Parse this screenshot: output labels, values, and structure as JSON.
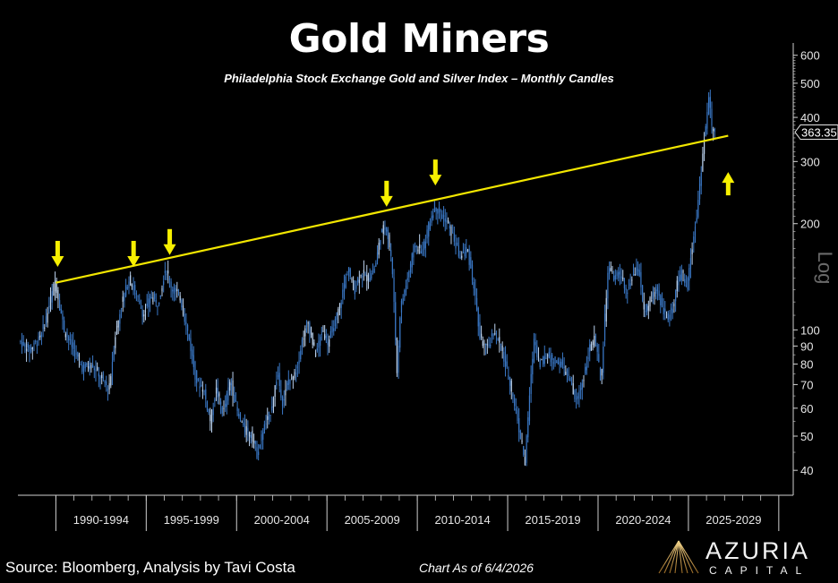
{
  "header": {
    "title": "Gold Miners",
    "subtitle": "Philadelphia Stock Exchange Gold and Silver Index – Monthly Candles"
  },
  "footer": {
    "source": "Source: Bloomberg, Analysis by Tavi Costa",
    "date": "Chart As of 6/4/2026"
  },
  "brand": {
    "name": "AZURIA",
    "sub": "CAPITAL"
  },
  "colors": {
    "background": "#000000",
    "candle": "#3a78c6",
    "candle_light": "#bcd3ef",
    "trendline": "#f2e600",
    "arrow": "#f7f000",
    "axis": "#d0d0d0"
  },
  "chart_data": {
    "type": "candlestick",
    "frequency": "monthly",
    "scale": "log",
    "ylim": [
      34,
      650
    ],
    "xlim": [
      1987.9,
      2030.8
    ],
    "yticks": [
      40,
      50,
      60,
      70,
      80,
      90,
      100,
      200,
      300,
      400,
      500,
      600
    ],
    "ylabel": "Log",
    "x_groups": [
      {
        "label": "1990-1994",
        "start": 1990,
        "end": 1995
      },
      {
        "label": "1995-1999",
        "start": 1995,
        "end": 2000
      },
      {
        "label": "2000-2004",
        "start": 2000,
        "end": 2005
      },
      {
        "label": "2005-2009",
        "start": 2005,
        "end": 2010
      },
      {
        "label": "2010-2014",
        "start": 2010,
        "end": 2015
      },
      {
        "label": "2015-2019",
        "start": 2015,
        "end": 2020
      },
      {
        "label": "2020-2024",
        "start": 2020,
        "end": 2025
      },
      {
        "label": "2025-2029",
        "start": 2025,
        "end": 2030
      }
    ],
    "last_value": {
      "value": 363.35,
      "label": "363.35"
    },
    "price_path": [
      [
        1988.0,
        93
      ],
      [
        1988.6,
        88
      ],
      [
        1989.2,
        96
      ],
      [
        1989.5,
        108
      ],
      [
        1990.0,
        138
      ],
      [
        1990.5,
        100
      ],
      [
        1991.0,
        88
      ],
      [
        1991.5,
        78
      ],
      [
        1992.0,
        80
      ],
      [
        1992.6,
        72
      ],
      [
        1993.0,
        68
      ],
      [
        1993.3,
        95
      ],
      [
        1993.7,
        120
      ],
      [
        1994.1,
        140
      ],
      [
        1994.5,
        125
      ],
      [
        1994.9,
        110
      ],
      [
        1995.3,
        125
      ],
      [
        1995.7,
        118
      ],
      [
        1996.1,
        150
      ],
      [
        1996.5,
        130
      ],
      [
        1996.9,
        125
      ],
      [
        1997.4,
        95
      ],
      [
        1997.8,
        72
      ],
      [
        1998.2,
        68
      ],
      [
        1998.6,
        55
      ],
      [
        1998.9,
        68
      ],
      [
        1999.3,
        58
      ],
      [
        1999.7,
        72
      ],
      [
        2000.1,
        58
      ],
      [
        2000.5,
        52
      ],
      [
        2000.9,
        50
      ],
      [
        2001.2,
        44
      ],
      [
        2001.5,
        52
      ],
      [
        2001.9,
        58
      ],
      [
        2002.3,
        75
      ],
      [
        2002.6,
        62
      ],
      [
        2002.9,
        72
      ],
      [
        2003.3,
        75
      ],
      [
        2003.7,
        95
      ],
      [
        2004.0,
        105
      ],
      [
        2004.4,
        85
      ],
      [
        2004.8,
        100
      ],
      [
        2005.1,
        92
      ],
      [
        2005.5,
        105
      ],
      [
        2005.8,
        120
      ],
      [
        2006.2,
        150
      ],
      [
        2006.5,
        130
      ],
      [
        2006.9,
        145
      ],
      [
        2007.3,
        140
      ],
      [
        2007.7,
        150
      ],
      [
        2008.0,
        185
      ],
      [
        2008.3,
        200
      ],
      [
        2008.6,
        160
      ],
      [
        2008.8,
        110
      ],
      [
        2008.9,
        72
      ],
      [
        2009.1,
        115
      ],
      [
        2009.5,
        140
      ],
      [
        2009.9,
        175
      ],
      [
        2010.3,
        165
      ],
      [
        2010.7,
        200
      ],
      [
        2011.0,
        225
      ],
      [
        2011.3,
        215
      ],
      [
        2011.7,
        200
      ],
      [
        2012.0,
        185
      ],
      [
        2012.4,
        160
      ],
      [
        2012.8,
        170
      ],
      [
        2013.2,
        130
      ],
      [
        2013.5,
        95
      ],
      [
        2013.9,
        88
      ],
      [
        2014.3,
        100
      ],
      [
        2014.7,
        88
      ],
      [
        2014.9,
        80
      ],
      [
        2015.2,
        70
      ],
      [
        2015.6,
        55
      ],
      [
        2015.8,
        48
      ],
      [
        2016.0,
        42
      ],
      [
        2016.2,
        60
      ],
      [
        2016.5,
        95
      ],
      [
        2016.8,
        80
      ],
      [
        2017.2,
        85
      ],
      [
        2017.6,
        82
      ],
      [
        2018.0,
        80
      ],
      [
        2018.5,
        72
      ],
      [
        2018.8,
        62
      ],
      [
        2019.2,
        72
      ],
      [
        2019.6,
        90
      ],
      [
        2019.9,
        95
      ],
      [
        2020.2,
        70
      ],
      [
        2020.4,
        105
      ],
      [
        2020.6,
        150
      ],
      [
        2020.9,
        140
      ],
      [
        2021.3,
        145
      ],
      [
        2021.6,
        125
      ],
      [
        2021.9,
        140
      ],
      [
        2022.3,
        150
      ],
      [
        2022.6,
        110
      ],
      [
        2022.9,
        120
      ],
      [
        2023.3,
        130
      ],
      [
        2023.7,
        112
      ],
      [
        2023.9,
        108
      ],
      [
        2024.2,
        118
      ],
      [
        2024.4,
        135
      ],
      [
        2024.7,
        145
      ],
      [
        2024.9,
        130
      ],
      [
        2025.1,
        155
      ],
      [
        2025.3,
        180
      ],
      [
        2025.5,
        210
      ],
      [
        2025.7,
        270
      ],
      [
        2025.9,
        340
      ],
      [
        2026.1,
        420
      ],
      [
        2026.2,
        470
      ],
      [
        2026.3,
        380
      ],
      [
        2026.43,
        363
      ]
    ],
    "trendline": {
      "start": [
        1990.0,
        136
      ],
      "end": [
        2027.2,
        355
      ]
    },
    "annotations": [
      {
        "type": "arrow-down",
        "x": 1990.1,
        "y": 150
      },
      {
        "type": "arrow-down",
        "x": 1994.3,
        "y": 150
      },
      {
        "type": "arrow-down",
        "x": 1996.3,
        "y": 162
      },
      {
        "type": "arrow-down",
        "x": 2008.3,
        "y": 222
      },
      {
        "type": "arrow-down",
        "x": 2011.0,
        "y": 255
      },
      {
        "type": "arrow-up",
        "x": 2027.2,
        "y": 280
      }
    ]
  }
}
